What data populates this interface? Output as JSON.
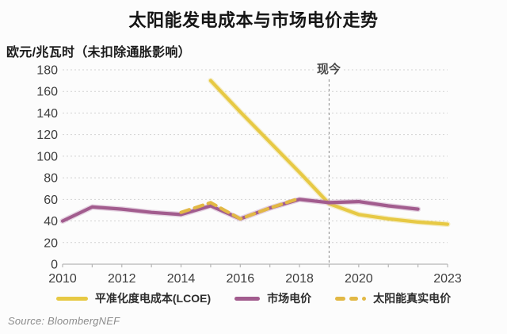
{
  "source": {
    "text": "Source: BloombergNEF"
  },
  "chart_data": {
    "type": "line",
    "title": "太阳能发电成本与市场电价走势",
    "ylabel": "欧元/兆瓦时（未扣除通胀影响）",
    "xlabel": "",
    "ylim": [
      0,
      180
    ],
    "yticks": [
      0,
      20,
      40,
      60,
      80,
      100,
      120,
      140,
      160,
      180
    ],
    "xlim": [
      2010,
      2023
    ],
    "xticks": [
      2010,
      2012,
      2014,
      2016,
      2018,
      2020,
      2023
    ],
    "minor_xticks_every_year": true,
    "grid": "horizontal-dotted",
    "legend_position": "bottom",
    "annotation": {
      "label": "现今",
      "x": 2019
    },
    "colors": {
      "grid": "#d2d2d2",
      "axis": "#b5b5b5",
      "now_line": "#9a9a9a",
      "tick_text": "#3d3d3d"
    },
    "series": [
      {
        "name": "平准化度电成本(LCOE)",
        "style": "solid",
        "color": "#e7c944",
        "halo": "rgba(235,215,120,0.38)",
        "x": [
          2015,
          2016,
          2017,
          2018,
          2019,
          2020,
          2021,
          2022,
          2023
        ],
        "values": [
          170,
          141,
          113,
          85,
          56,
          46,
          42,
          39,
          37
        ]
      },
      {
        "name": "市场电价",
        "style": "solid",
        "color": "#a25c8e",
        "halo": "rgba(190,140,180,0.35)",
        "x": [
          2010,
          2011,
          2012,
          2013,
          2014,
          2015,
          2016,
          2017,
          2018,
          2019,
          2020,
          2021,
          2022
        ],
        "values": [
          40,
          53,
          51,
          48,
          46,
          54,
          42,
          52,
          60,
          57,
          58,
          54,
          51
        ]
      },
      {
        "name": "太阳能真实电价",
        "style": "dashed",
        "color": "#e2b845",
        "halo": "none",
        "x": [
          2014,
          2015,
          2016,
          2017,
          2018
        ],
        "values": [
          48,
          57,
          42,
          52,
          61
        ]
      }
    ]
  }
}
